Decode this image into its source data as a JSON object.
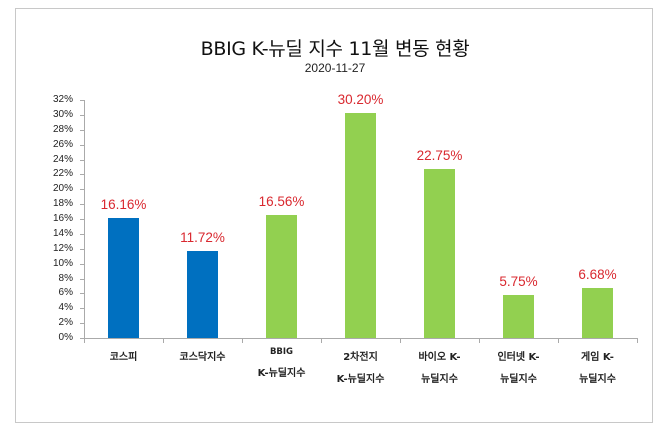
{
  "chart_data": {
    "type": "bar",
    "title": "BBIG K-뉴딜 지수 11월 변동 현황",
    "subtitle": "2020-11-27",
    "xlabel": "",
    "ylabel": "",
    "ylim": [
      0,
      32
    ],
    "yticks": [
      "0%",
      "2%",
      "4%",
      "6%",
      "8%",
      "10%",
      "12%",
      "14%",
      "16%",
      "18%",
      "20%",
      "22%",
      "24%",
      "26%",
      "28%",
      "30%",
      "32%"
    ],
    "grid": false,
    "legend": null,
    "categories": [
      "코스피",
      "코스닥지수",
      "BBIG K-뉴딜지수",
      "2차전지 K-뉴딜지수",
      "바이오 K-뉴딜지수",
      "인터넷 K-뉴딜지수",
      "게임 K-뉴딜지수"
    ],
    "category_lines": [
      [
        "코스피"
      ],
      [
        "코스닥지수"
      ],
      [
        "BBIG",
        "K-뉴딜지수"
      ],
      [
        "2차전지",
        "K-뉴딜지수"
      ],
      [
        "바이오 K-",
        "뉴딜지수"
      ],
      [
        "인터넷 K-",
        "뉴딜지수"
      ],
      [
        "게임 K-",
        "뉴딜지수"
      ]
    ],
    "values": [
      16.16,
      11.72,
      16.56,
      30.2,
      22.75,
      5.75,
      6.68
    ],
    "value_labels": [
      "16.16%",
      "11.72%",
      "16.56%",
      "30.20%",
      "22.75%",
      "5.75%",
      "6.68%"
    ],
    "bar_colors": [
      "#0070c0",
      "#0070c0",
      "#92d050",
      "#92d050",
      "#92d050",
      "#92d050",
      "#92d050"
    ],
    "label_color": "#d9282f"
  }
}
